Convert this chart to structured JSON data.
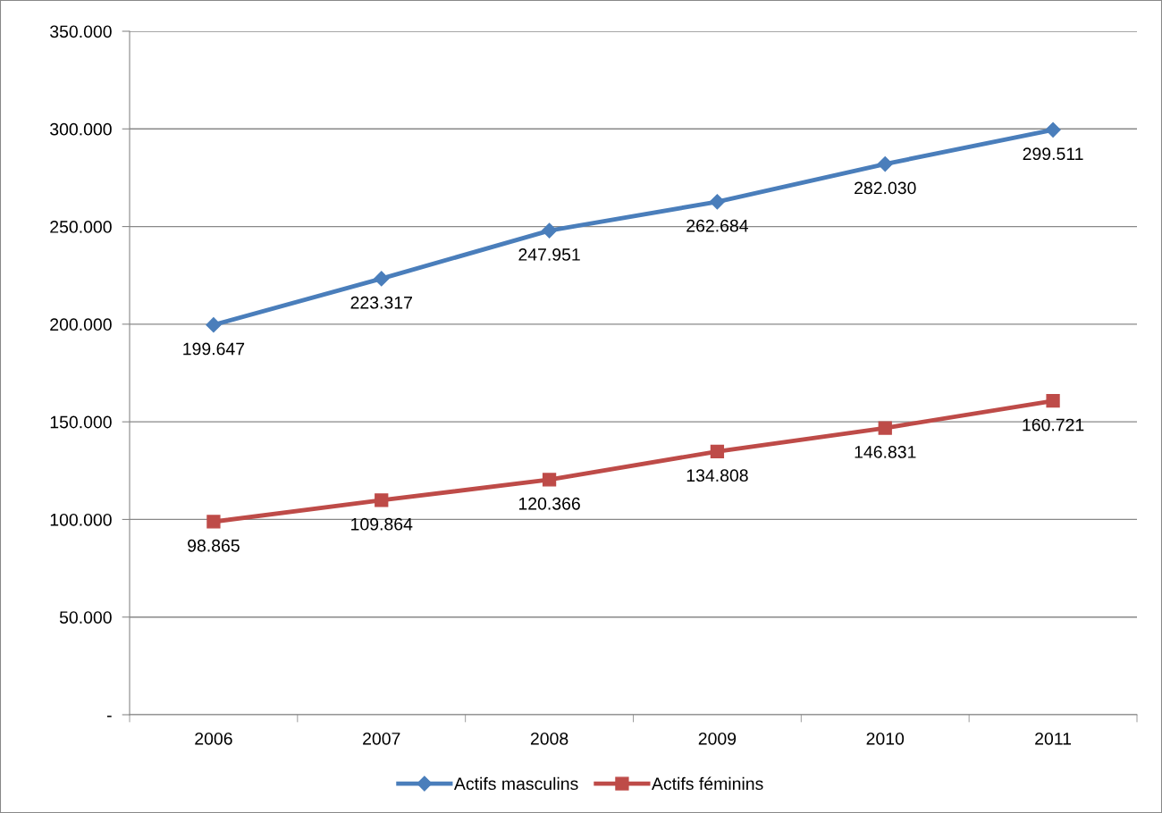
{
  "chart_data": {
    "type": "line",
    "categories": [
      "2006",
      "2007",
      "2008",
      "2009",
      "2010",
      "2011"
    ],
    "series": [
      {
        "name": "Actifs masculins",
        "color": "#4a7ebb",
        "marker": "diamond",
        "values": [
          199647,
          223317,
          247951,
          262684,
          282030,
          299511
        ],
        "value_labels": [
          "199.647",
          "223.317",
          "247.951",
          "262.684",
          "282.030",
          "299.511"
        ]
      },
      {
        "name": "Actifs féminins",
        "color": "#be4b48",
        "marker": "square",
        "values": [
          98865,
          109864,
          120366,
          134808,
          146831,
          160721
        ],
        "value_labels": [
          "98.865",
          "109.864",
          "120.366",
          "134.808",
          "146.831",
          "160.721"
        ]
      }
    ],
    "ylim": [
      0,
      350000
    ],
    "yticks": [
      {
        "value": 0,
        "label": "-"
      },
      {
        "value": 50000,
        "label": "50.000"
      },
      {
        "value": 100000,
        "label": "100.000"
      },
      {
        "value": 150000,
        "label": "150.000"
      },
      {
        "value": 200000,
        "label": "200.000"
      },
      {
        "value": 250000,
        "label": "250.000"
      },
      {
        "value": 300000,
        "label": "300.000"
      },
      {
        "value": 350000,
        "label": "350.000"
      }
    ],
    "grid": "y",
    "legend": "bottom",
    "line_style": "solid"
  }
}
